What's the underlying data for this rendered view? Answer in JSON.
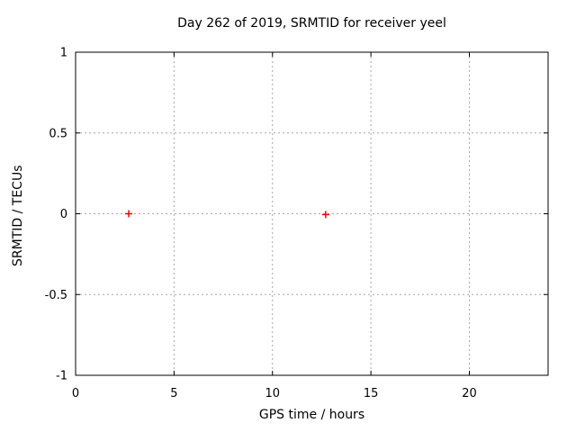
{
  "chart_data": {
    "type": "scatter",
    "title": "Day 262 of 2019, SRMTID for receiver yeel",
    "xlabel": "GPS time / hours",
    "ylabel": "SRMTID / TECUs",
    "xlim": [
      0,
      24
    ],
    "ylim": [
      -1,
      1
    ],
    "xticks": [
      0,
      5,
      10,
      15,
      20
    ],
    "yticks": [
      1,
      0.5,
      0,
      -0.5,
      -1
    ],
    "grid": true,
    "legend": "none",
    "series": [
      {
        "name": "SRMTID",
        "marker": "plus",
        "color": "#ff0000",
        "points": [
          {
            "x": 2.7,
            "y": 0.0
          },
          {
            "x": 12.7,
            "y": -0.005
          }
        ]
      }
    ],
    "colors": {
      "axis": "#000000",
      "grid": "#a8a8a8",
      "text": "#000000",
      "background": "#ffffff"
    }
  }
}
